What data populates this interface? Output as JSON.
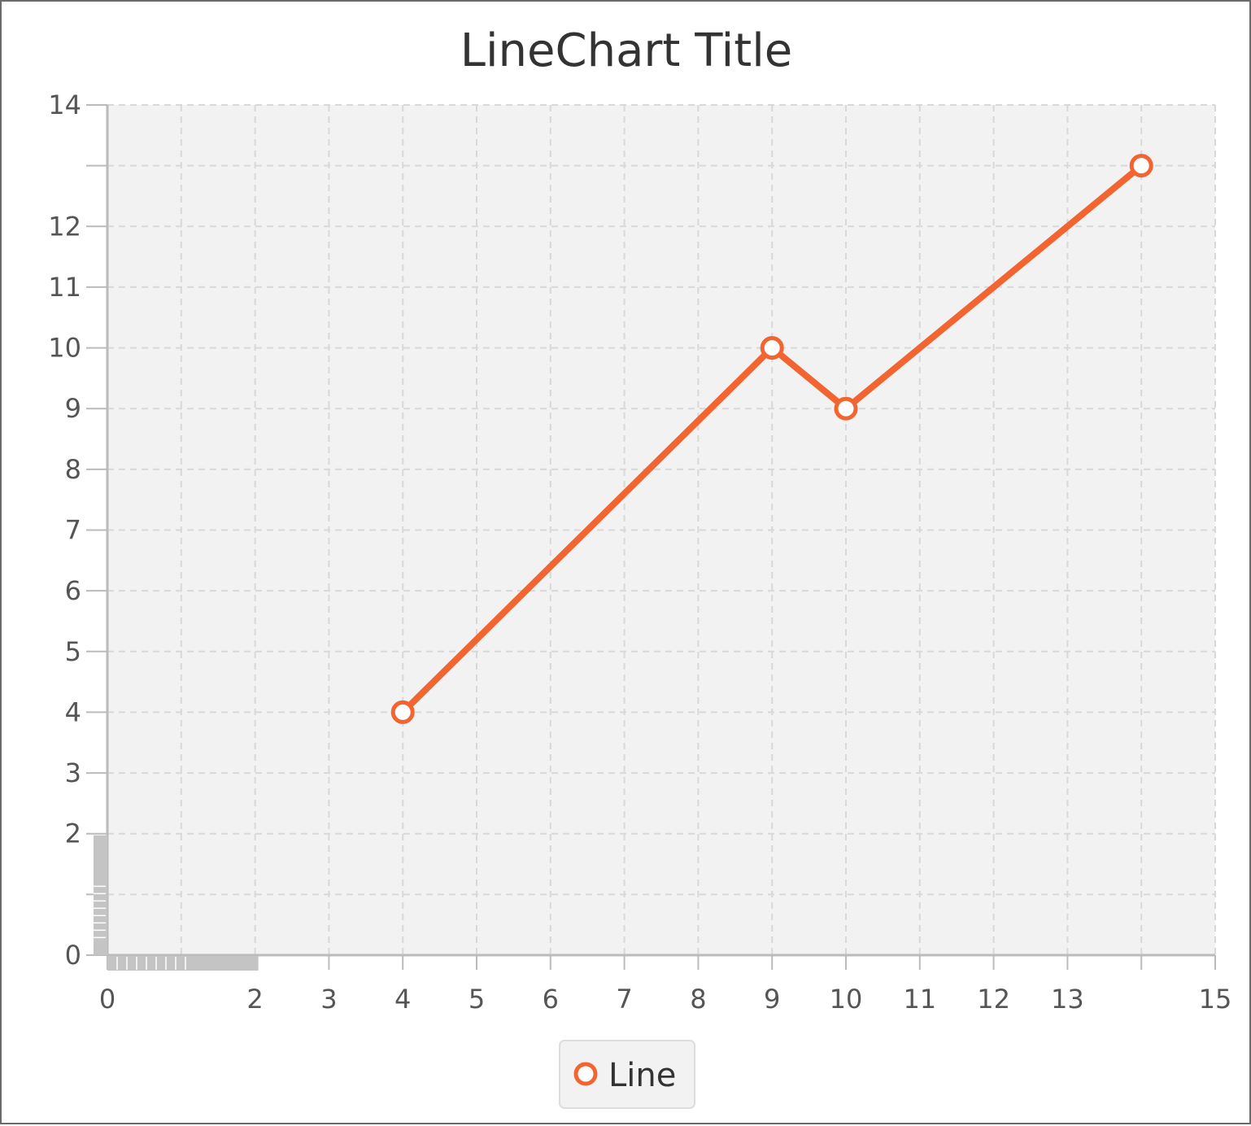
{
  "chart_data": {
    "type": "line",
    "title": "LineChart Title",
    "xlabel": "",
    "ylabel": "",
    "xlim": [
      0,
      15
    ],
    "ylim": [
      0,
      14
    ],
    "x_ticks": [
      0,
      1,
      2,
      3,
      4,
      5,
      6,
      7,
      8,
      9,
      10,
      11,
      12,
      13,
      14,
      15
    ],
    "x_tick_labels": [
      "0",
      "",
      "2",
      "3",
      "4",
      "5",
      "6",
      "7",
      "8",
      "9",
      "10",
      "11",
      "12",
      "13",
      "",
      "15"
    ],
    "y_ticks": [
      0,
      1,
      2,
      3,
      4,
      5,
      6,
      7,
      8,
      9,
      10,
      11,
      12,
      13,
      14
    ],
    "y_tick_labels": [
      "0",
      "",
      "2",
      "3",
      "4",
      "5",
      "6",
      "7",
      "8",
      "9",
      "10",
      "11",
      "12",
      "",
      "14"
    ],
    "grid": true,
    "legend_position": "bottom",
    "series": [
      {
        "name": "Line",
        "color": "#f26430",
        "marker_fill": "#ffffff",
        "x": [
          4,
          9,
          10,
          14
        ],
        "y": [
          4,
          10,
          9,
          13
        ]
      }
    ]
  },
  "colors": {
    "plot_background": "#f2f2f2",
    "grid": "#d8d8d8",
    "axis": "#bbbbbb",
    "legend_background": "#f2f2f2"
  }
}
